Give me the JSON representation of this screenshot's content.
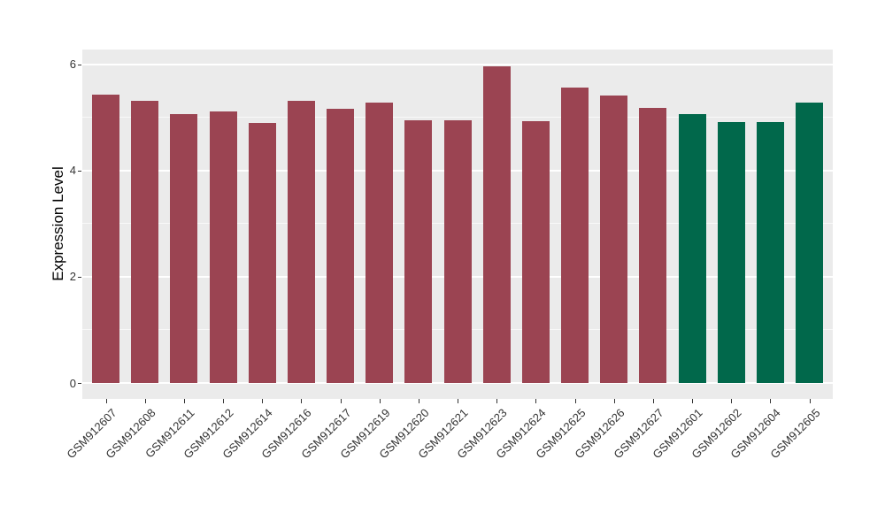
{
  "chart_data": {
    "type": "bar",
    "title": "",
    "xlabel": "",
    "ylabel": "Expression Level",
    "categories": [
      "GSM912607",
      "GSM912608",
      "GSM912611",
      "GSM912612",
      "GSM912614",
      "GSM912616",
      "GSM912617",
      "GSM912619",
      "GSM912620",
      "GSM912621",
      "GSM912623",
      "GSM912624",
      "GSM912625",
      "GSM912626",
      "GSM912627",
      "GSM912601",
      "GSM912602",
      "GSM912604",
      "GSM912605"
    ],
    "values": [
      5.43,
      5.32,
      5.07,
      5.11,
      4.9,
      5.32,
      5.17,
      5.28,
      4.94,
      4.94,
      5.97,
      4.93,
      5.56,
      5.41,
      5.18,
      5.06,
      4.91,
      4.91,
      5.28
    ],
    "groups": [
      "maroon",
      "maroon",
      "maroon",
      "maroon",
      "maroon",
      "maroon",
      "maroon",
      "maroon",
      "maroon",
      "maroon",
      "maroon",
      "maroon",
      "maroon",
      "maroon",
      "maroon",
      "green",
      "green",
      "green",
      "green"
    ],
    "group_colors": {
      "maroon": "#9B4452",
      "green": "#01684B"
    },
    "yticks": [
      0,
      2,
      4,
      6
    ],
    "minor_yticks": [
      1,
      3,
      5
    ],
    "ylim": [
      -0.3,
      6.28
    ],
    "grid": true,
    "legend_position": "none",
    "panel_background": "#EBEBEB",
    "grid_color": "#FFFFFF",
    "x_tick_rotation_deg": 45
  }
}
